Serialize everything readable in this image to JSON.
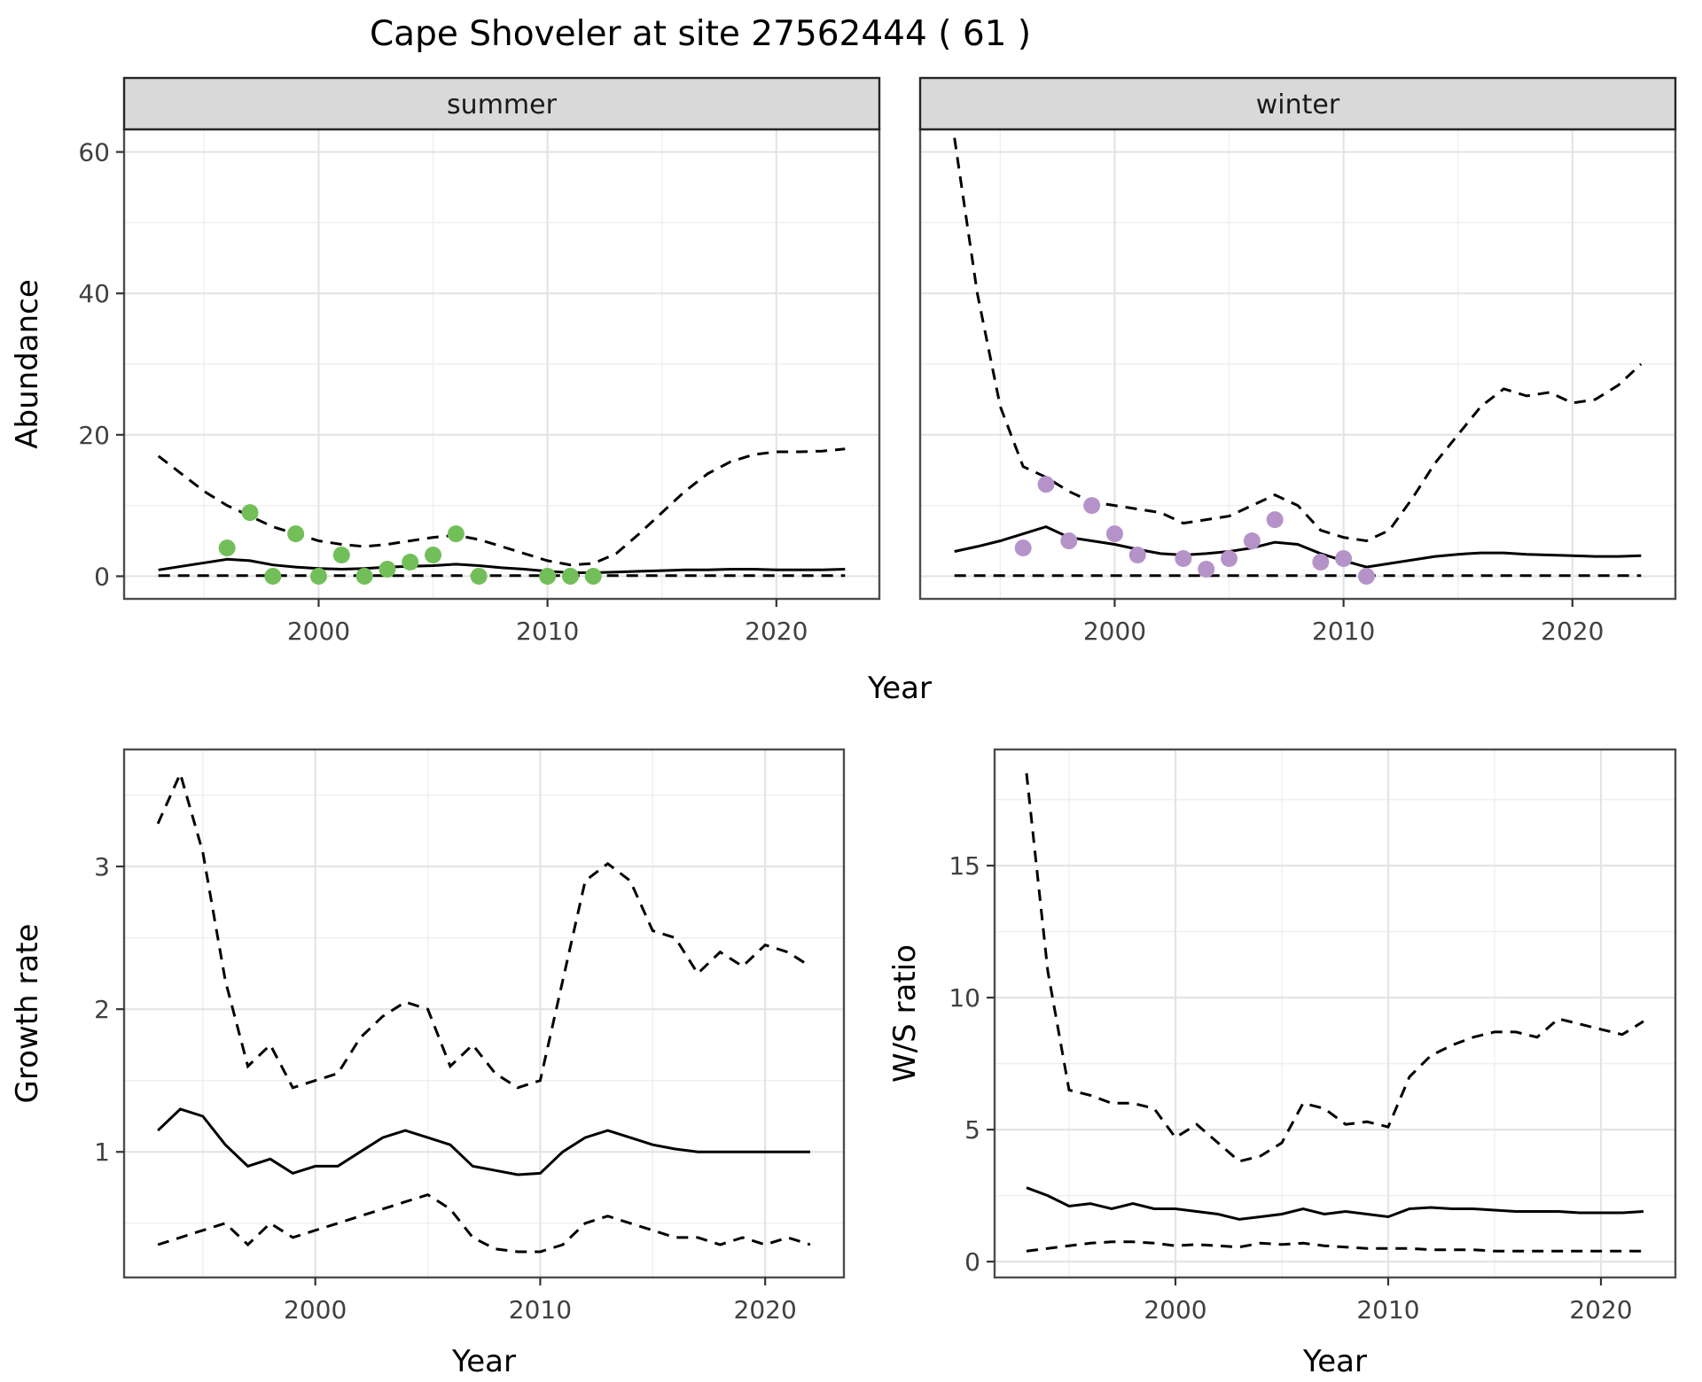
{
  "title": "Cape Shoveler at site 27562444 ( 61 )",
  "colors": {
    "background": "#ffffff",
    "strip_bg": "#d9d9d9",
    "strip_border": "#262626",
    "strip_text": "#1a1a1a",
    "panel_border": "#4d4d4d",
    "grid_major": "#e4e4e4",
    "grid_minor": "#efefef",
    "line": "#000000",
    "tick_mark": "#333333",
    "tick_label": "#404040",
    "axis_title": "#000000",
    "summer_points": "#72bf5a",
    "winter_points": "#b593c9"
  },
  "chart_data": [
    {
      "id": "abundance-summer",
      "type": "line",
      "facet_label": "summer",
      "xlabel": "Year",
      "ylabel": "Abundance",
      "xlim": [
        1991.5,
        2024.5
      ],
      "ylim": [
        -3.2,
        63.2
      ],
      "xticks": [
        2000,
        2010,
        2020
      ],
      "yticks": [
        0,
        20,
        40,
        60
      ],
      "x_minor": [
        1995,
        2005,
        2015
      ],
      "y_minor": [
        10,
        30,
        50
      ],
      "x": [
        1993,
        1994,
        1995,
        1996,
        1997,
        1998,
        1999,
        2000,
        2001,
        2002,
        2003,
        2004,
        2005,
        2006,
        2007,
        2008,
        2009,
        2010,
        2011,
        2012,
        2013,
        2014,
        2015,
        2016,
        2017,
        2018,
        2019,
        2020,
        2021,
        2022,
        2023
      ],
      "series": [
        {
          "name": "upper-ci",
          "style": "dashed",
          "y": [
            17,
            14.5,
            12,
            10,
            8.5,
            7,
            6,
            5,
            4.5,
            4.2,
            4.5,
            5,
            5.5,
            5.8,
            5.2,
            4.2,
            3.2,
            2.2,
            1.6,
            1.8,
            3.2,
            6,
            9,
            12,
            14.5,
            16.2,
            17.2,
            17.6,
            17.6,
            17.7,
            18
          ]
        },
        {
          "name": "lower-ci",
          "style": "dashed",
          "y": [
            0.1,
            0.1,
            0.1,
            0.1,
            0.1,
            0.1,
            0.1,
            0.1,
            0.1,
            0.1,
            0.1,
            0.1,
            0.1,
            0.1,
            0.1,
            0.1,
            0.1,
            0.1,
            0.1,
            0.1,
            0.1,
            0.1,
            0.1,
            0.1,
            0.1,
            0.1,
            0.1,
            0.1,
            0.1,
            0.1,
            0.1
          ]
        },
        {
          "name": "median",
          "style": "solid",
          "y": [
            0.9,
            1.4,
            1.9,
            2.4,
            2.2,
            1.6,
            1.3,
            1.1,
            1.0,
            1.1,
            1.3,
            1.4,
            1.5,
            1.7,
            1.5,
            1.2,
            1.0,
            0.7,
            0.5,
            0.5,
            0.6,
            0.7,
            0.8,
            0.9,
            0.9,
            1.0,
            1.0,
            0.9,
            0.9,
            0.9,
            1.0
          ]
        },
        {
          "name": "observed-counts",
          "style": "points",
          "color": "#72bf5a",
          "x": [
            1996,
            1997,
            1998,
            1999,
            2000,
            2001,
            2002,
            2003,
            2004,
            2005,
            2006,
            2007,
            2010,
            2011,
            2012
          ],
          "y": [
            4,
            9,
            0,
            6,
            0,
            3,
            0,
            1,
            2,
            3,
            6,
            0,
            0,
            0,
            0
          ]
        }
      ]
    },
    {
      "id": "abundance-winter",
      "type": "line",
      "facet_label": "winter",
      "xlabel": "Year",
      "ylabel": "Abundance",
      "xlim": [
        1991.5,
        2024.5
      ],
      "ylim": [
        -3.2,
        63.2
      ],
      "xticks": [
        2000,
        2010,
        2020
      ],
      "yticks": [
        0,
        20,
        40,
        60
      ],
      "x_minor": [
        1995,
        2005,
        2015
      ],
      "y_minor": [
        10,
        30,
        50
      ],
      "x": [
        1993,
        1994,
        1995,
        1996,
        1997,
        1998,
        1999,
        2000,
        2001,
        2002,
        2003,
        2004,
        2005,
        2006,
        2007,
        2008,
        2009,
        2010,
        2011,
        2012,
        2013,
        2014,
        2015,
        2016,
        2017,
        2018,
        2019,
        2020,
        2021,
        2022,
        2023
      ],
      "series": [
        {
          "name": "upper-ci",
          "style": "dashed",
          "y": [
            62,
            40,
            24,
            15.5,
            14,
            12,
            10.5,
            10,
            9.5,
            9,
            7.5,
            8,
            8.5,
            10,
            11.5,
            10,
            6.5,
            5.5,
            5,
            6.5,
            11,
            16,
            20,
            24,
            26.5,
            25.5,
            26,
            24.5,
            25,
            27,
            30
          ]
        },
        {
          "name": "lower-ci",
          "style": "dashed",
          "y": [
            0.1,
            0.1,
            0.1,
            0.1,
            0.1,
            0.1,
            0.1,
            0.1,
            0.1,
            0.1,
            0.1,
            0.1,
            0.1,
            0.1,
            0.1,
            0.1,
            0.1,
            0.1,
            0.1,
            0.1,
            0.1,
            0.1,
            0.1,
            0.1,
            0.1,
            0.1,
            0.1,
            0.1,
            0.1,
            0.1,
            0.1
          ]
        },
        {
          "name": "median",
          "style": "solid",
          "y": [
            3.5,
            4.2,
            5,
            6,
            7,
            5.5,
            5,
            4.5,
            3.8,
            3.2,
            3,
            3.2,
            3.5,
            4,
            4.8,
            4.5,
            3.2,
            2.2,
            1.3,
            1.8,
            2.3,
            2.8,
            3.1,
            3.3,
            3.3,
            3.1,
            3,
            2.9,
            2.8,
            2.8,
            2.9
          ]
        },
        {
          "name": "observed-counts",
          "style": "points",
          "color": "#b593c9",
          "x": [
            1996,
            1997,
            1998,
            1999,
            2000,
            2001,
            2003,
            2004,
            2005,
            2006,
            2007,
            2009,
            2010,
            2011
          ],
          "y": [
            4,
            13,
            5,
            10,
            6,
            3,
            2.5,
            1,
            2.5,
            5,
            8,
            2,
            2.5,
            0
          ]
        }
      ]
    },
    {
      "id": "growth-rate",
      "type": "line",
      "facet_label": "",
      "xlabel": "Year",
      "ylabel": "Growth rate",
      "xlim": [
        1991.5,
        2023.5
      ],
      "ylim": [
        0.12,
        3.82
      ],
      "xticks": [
        2000,
        2010,
        2020
      ],
      "yticks": [
        1,
        2,
        3
      ],
      "x_minor": [
        1995,
        2005,
        2015
      ],
      "y_minor": [
        0.5,
        1.5,
        2.5,
        3.5
      ],
      "x": [
        1993,
        1994,
        1995,
        1996,
        1997,
        1998,
        1999,
        2000,
        2001,
        2002,
        2003,
        2004,
        2005,
        2006,
        2007,
        2008,
        2009,
        2010,
        2011,
        2012,
        2013,
        2014,
        2015,
        2016,
        2017,
        2018,
        2019,
        2020,
        2021,
        2022
      ],
      "series": [
        {
          "name": "upper-ci",
          "style": "dashed",
          "y": [
            3.3,
            3.65,
            3.1,
            2.2,
            1.6,
            1.75,
            1.45,
            1.5,
            1.55,
            1.8,
            1.95,
            2.05,
            2.0,
            1.6,
            1.75,
            1.55,
            1.45,
            1.5,
            2.2,
            2.9,
            3.02,
            2.9,
            2.55,
            2.5,
            2.25,
            2.4,
            2.3,
            2.45,
            2.4,
            2.3
          ]
        },
        {
          "name": "lower-ci",
          "style": "dashed",
          "y": [
            0.35,
            0.4,
            0.45,
            0.5,
            0.35,
            0.5,
            0.4,
            0.45,
            0.5,
            0.55,
            0.6,
            0.65,
            0.7,
            0.6,
            0.4,
            0.32,
            0.3,
            0.3,
            0.35,
            0.5,
            0.55,
            0.5,
            0.45,
            0.4,
            0.4,
            0.35,
            0.4,
            0.35,
            0.4,
            0.35
          ]
        },
        {
          "name": "median",
          "style": "solid",
          "y": [
            1.15,
            1.3,
            1.25,
            1.05,
            0.9,
            0.95,
            0.85,
            0.9,
            0.9,
            1.0,
            1.1,
            1.15,
            1.1,
            1.05,
            0.9,
            0.87,
            0.84,
            0.85,
            1.0,
            1.1,
            1.15,
            1.1,
            1.05,
            1.02,
            1.0,
            1.0,
            1.0,
            1.0,
            1.0,
            1.0
          ]
        }
      ]
    },
    {
      "id": "ws-ratio",
      "type": "line",
      "facet_label": "",
      "xlabel": "Year",
      "ylabel": "W/S ratio",
      "xlim": [
        1991.5,
        2023.5
      ],
      "ylim": [
        -0.6,
        19.4
      ],
      "xticks": [
        2000,
        2010,
        2020
      ],
      "yticks": [
        0,
        5,
        10,
        15
      ],
      "x_minor": [
        1995,
        2005,
        2015
      ],
      "y_minor": [
        2.5,
        7.5,
        12.5,
        17.5
      ],
      "x": [
        1993,
        1994,
        1995,
        1996,
        1997,
        1998,
        1999,
        2000,
        2001,
        2002,
        2003,
        2004,
        2005,
        2006,
        2007,
        2008,
        2009,
        2010,
        2011,
        2012,
        2013,
        2014,
        2015,
        2016,
        2017,
        2018,
        2019,
        2020,
        2021,
        2022
      ],
      "series": [
        {
          "name": "upper-ci",
          "style": "dashed",
          "y": [
            18.5,
            11,
            6.5,
            6.3,
            6.0,
            6.0,
            5.8,
            4.7,
            5.2,
            4.5,
            3.8,
            4.0,
            4.5,
            6.0,
            5.8,
            5.2,
            5.3,
            5.1,
            7.0,
            7.8,
            8.2,
            8.5,
            8.7,
            8.7,
            8.5,
            9.2,
            9.0,
            8.8,
            8.6,
            9.1
          ]
        },
        {
          "name": "lower-ci",
          "style": "dashed",
          "y": [
            0.4,
            0.5,
            0.6,
            0.7,
            0.75,
            0.75,
            0.7,
            0.6,
            0.65,
            0.6,
            0.55,
            0.7,
            0.65,
            0.7,
            0.6,
            0.55,
            0.5,
            0.5,
            0.5,
            0.45,
            0.45,
            0.45,
            0.4,
            0.4,
            0.4,
            0.4,
            0.4,
            0.4,
            0.4,
            0.4
          ]
        },
        {
          "name": "median",
          "style": "solid",
          "y": [
            2.8,
            2.5,
            2.1,
            2.2,
            2.0,
            2.2,
            2.0,
            2.0,
            1.9,
            1.8,
            1.6,
            1.7,
            1.8,
            2.0,
            1.8,
            1.9,
            1.8,
            1.7,
            2.0,
            2.05,
            2.0,
            2.0,
            1.95,
            1.9,
            1.9,
            1.9,
            1.85,
            1.85,
            1.85,
            1.9
          ]
        }
      ]
    }
  ]
}
